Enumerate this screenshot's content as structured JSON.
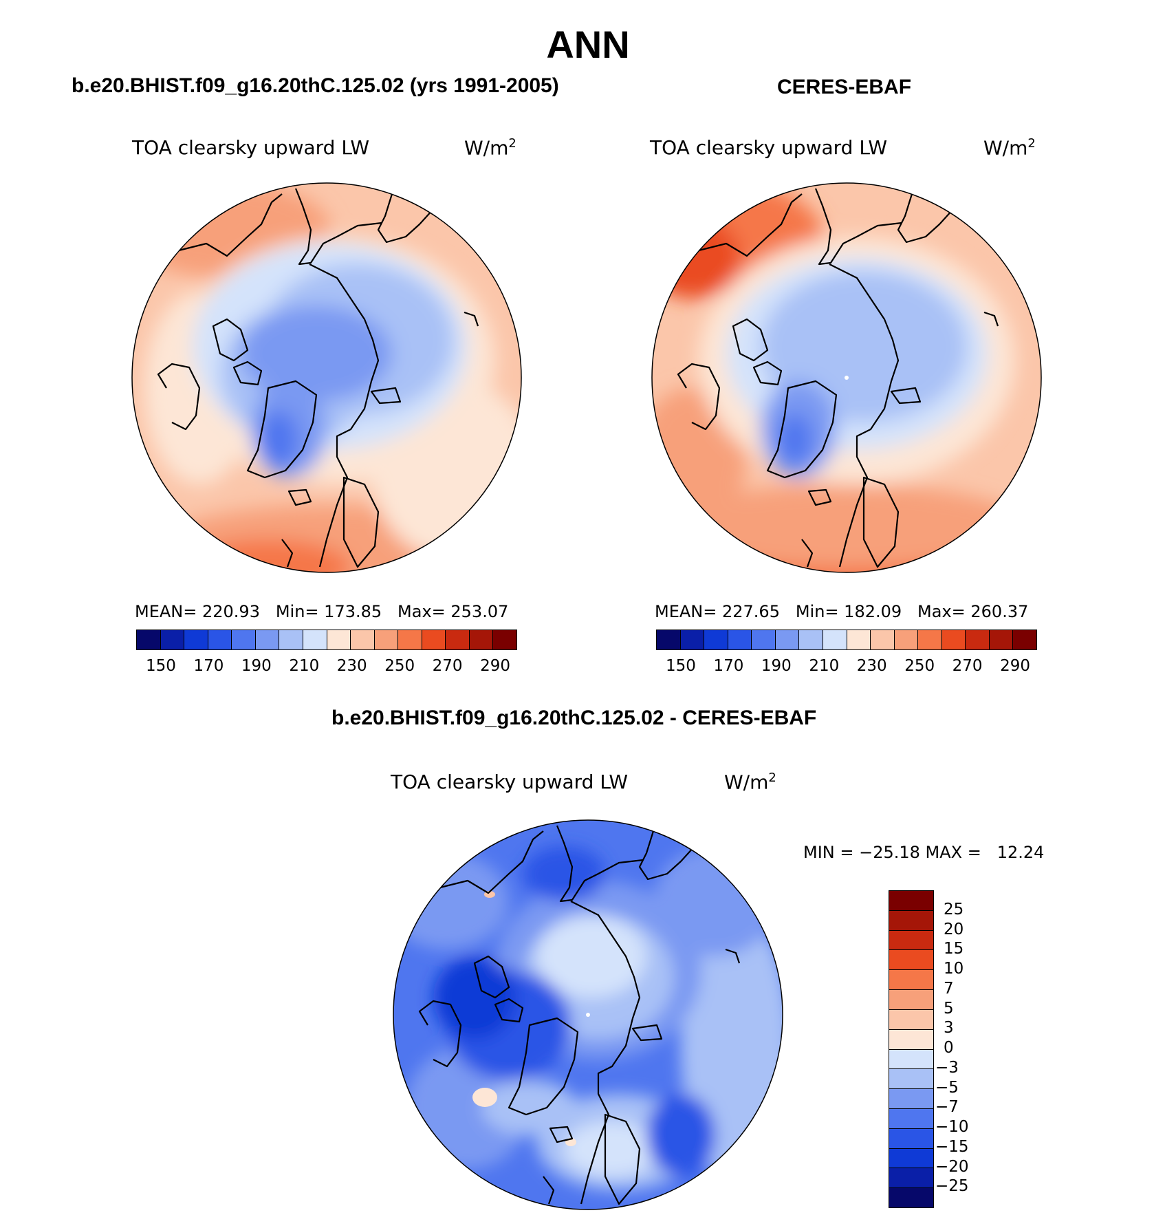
{
  "title": "ANN",
  "panels": {
    "model": {
      "title": "b.e20.BHIST.f09_g16.20thC.125.02 (yrs 1991-2005)",
      "var_label": "TOA clearsky upward LW",
      "unit_base": "W/m",
      "unit_sup": "2",
      "stats": "MEAN= 220.93   Min= 173.85   Max= 253.07",
      "stats_values": {
        "mean": 220.93,
        "min": 173.85,
        "max": 253.07
      }
    },
    "obs": {
      "title": "CERES-EBAF",
      "var_label": "TOA clearsky upward LW",
      "unit_base": "W/m",
      "unit_sup": "2",
      "stats": "MEAN= 227.65   Min= 182.09   Max= 260.37",
      "stats_values": {
        "mean": 227.65,
        "min": 182.09,
        "max": 260.37
      }
    },
    "diff": {
      "title": "b.e20.BHIST.f09_g16.20thC.125.02 - CERES-EBAF",
      "var_label": "TOA clearsky upward LW",
      "unit_base": "W/m",
      "unit_sup": "2",
      "stats": "MIN = −25.18 MAX =   12.24",
      "stats_values": {
        "min": -25.18,
        "max": 12.24
      }
    }
  },
  "colorbar_abs": {
    "colors": [
      "#06086a",
      "#0a1fa8",
      "#0f3ad6",
      "#2a55e6",
      "#4f76ef",
      "#7a99f2",
      "#a9c1f6",
      "#d4e3fb",
      "#fde6d6",
      "#fbc6aa",
      "#f7a07a",
      "#f57748",
      "#ea4b20",
      "#c92a10",
      "#a51608",
      "#7a0000"
    ],
    "tick_labels": [
      "150",
      "170",
      "190",
      "210",
      "230",
      "250",
      "270",
      "290"
    ]
  },
  "colorbar_diff": {
    "colors": [
      "#7a0000",
      "#a51608",
      "#c92a10",
      "#ea4b20",
      "#f57748",
      "#f7a07a",
      "#fbc6aa",
      "#fde6d6",
      "#d4e3fb",
      "#a9c1f6",
      "#7a99f2",
      "#4f76ef",
      "#2a55e6",
      "#0f3ad6",
      "#0a1fa8",
      "#06086a"
    ],
    "tick_labels": [
      "25",
      "20",
      "15",
      "10",
      "7",
      "5",
      "3",
      "0",
      "−3",
      "−5",
      "−7",
      "−10",
      "−15",
      "−20",
      "−25"
    ]
  }
}
